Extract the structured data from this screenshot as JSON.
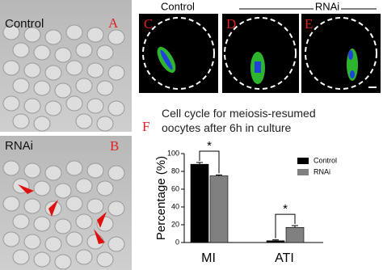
{
  "panels": {
    "a": {
      "label": "Control",
      "letter": "A"
    },
    "b": {
      "label": "RNAi",
      "letter": "B"
    },
    "c": {
      "letter": "C",
      "heading": "Control"
    },
    "d": {
      "letter": "D",
      "heading": "RNAi"
    },
    "e": {
      "letter": "E"
    },
    "f": {
      "letter": "F"
    }
  },
  "chart_data": {
    "type": "bar",
    "title": "Cell cycle for meiosis-resumed oocytes after 6h in culture",
    "y_label": "Percentage (%)",
    "categories": [
      "MI",
      "ATI"
    ],
    "series": [
      {
        "name": "Control",
        "color": "#000000",
        "values": [
          88,
          2
        ],
        "errors": [
          2,
          1
        ]
      },
      {
        "name": "RNAi",
        "color": "#808080",
        "values": [
          75,
          17
        ],
        "errors": [
          1,
          2
        ]
      }
    ],
    "annotations": [
      "*",
      "*"
    ],
    "ylim": [
      0,
      100
    ],
    "yticks": [
      0,
      20,
      40,
      60,
      80,
      100
    ]
  }
}
